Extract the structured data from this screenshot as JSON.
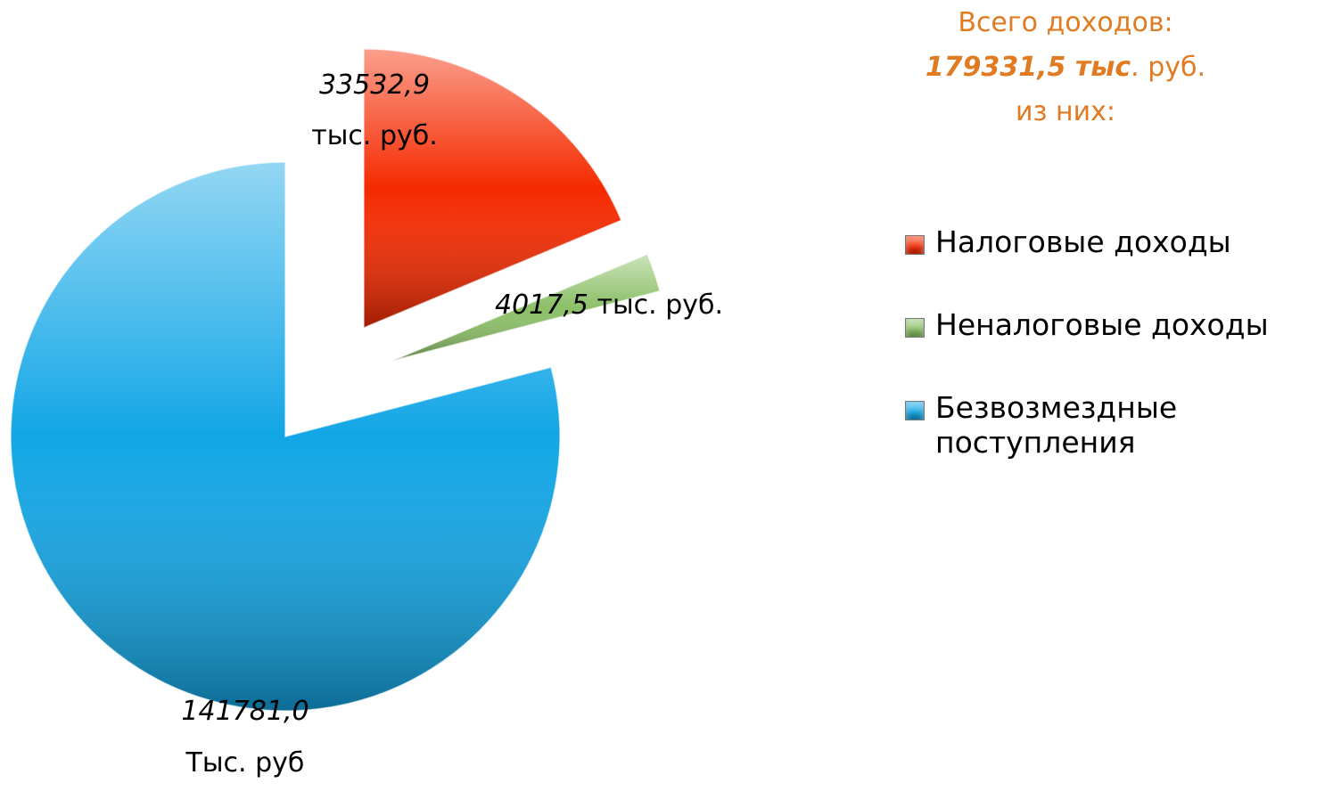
{
  "chart_data": {
    "type": "pie",
    "title_lines": [
      "Всего доходов:",
      "из них:"
    ],
    "total_label": "179331,5 тыс",
    "total_unit": ". руб.",
    "categories": [
      "Налоговые доходы",
      "Неналоговые доходы",
      "Безвозмездные поступления"
    ],
    "values": [
      33532.9,
      4017.5,
      141781.0
    ],
    "value_labels": [
      "33532,9",
      "4017,5",
      "141781,0"
    ],
    "unit_labels": [
      "тыс. руб.",
      " тыс. руб.",
      "Тыс. руб"
    ],
    "colors": [
      "#f52a00",
      "#8cc068",
      "#12a6e6"
    ],
    "legend": "right"
  }
}
